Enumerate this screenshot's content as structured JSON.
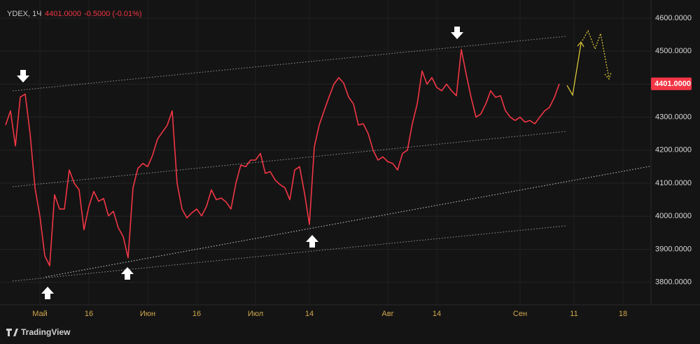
{
  "chart_data": {
    "type": "line",
    "symbol": "YDEX, 1Ч",
    "price": "4401.0000",
    "change": "-0.5000 (-0.01%)",
    "brand": "TradingView",
    "last_price": {
      "value": 4401,
      "label": "4401.0000"
    },
    "categories": [
      null,
      null,
      null,
      null,
      null,
      null,
      null,
      "Май",
      null,
      null,
      null,
      null,
      null,
      null,
      null,
      null,
      null,
      "16",
      null,
      null,
      null,
      null,
      null,
      null,
      null,
      null,
      null,
      null,
      null,
      "Июн",
      null,
      null,
      null,
      null,
      null,
      null,
      null,
      null,
      null,
      "16",
      null,
      null,
      null,
      null,
      null,
      null,
      null,
      null,
      null,
      null,
      null,
      "Июл",
      null,
      null,
      null,
      null,
      null,
      null,
      null,
      null,
      null,
      null,
      "14",
      null,
      null,
      null,
      null,
      null,
      null,
      null,
      null,
      null,
      null,
      null,
      null,
      null,
      null,
      null,
      "Авг",
      null,
      null,
      null,
      null,
      null,
      null,
      null,
      null,
      null,
      "14",
      null,
      null,
      null,
      null,
      null,
      null,
      null,
      null,
      null,
      null,
      null,
      null,
      null,
      null,
      null,
      null,
      "Сен",
      null,
      null,
      null,
      null,
      null,
      null,
      null,
      null,
      null,
      null,
      "11",
      null,
      null,
      null,
      null,
      null,
      null,
      null,
      null,
      null,
      "18"
    ],
    "series": [
      {
        "name": "YDEX",
        "color": "#f23645",
        "values": [
          4276,
          4319,
          4213,
          4361,
          4370,
          4250,
          4086,
          4000,
          3880,
          3850,
          4065,
          4022,
          4022,
          4140,
          4100,
          4080,
          3959,
          4030,
          4075,
          4045,
          4054,
          4001,
          4015,
          3965,
          3938,
          3874,
          4086,
          4145,
          4160,
          4150,
          4185,
          4234,
          4255,
          4276,
          4319,
          4100,
          4022,
          3995,
          4010,
          4022,
          4001,
          4030,
          4080,
          4050,
          4055,
          4043,
          4022,
          4100,
          4155,
          4150,
          4170,
          4170,
          4190,
          4130,
          4135,
          4110,
          4096,
          4086,
          4050,
          4140,
          4150,
          4070,
          3975,
          4210,
          4276,
          4319,
          4361,
          4400,
          4420,
          4403,
          4361,
          4340,
          4276,
          4280,
          4250,
          4200,
          4170,
          4180,
          4165,
          4160,
          4140,
          4190,
          4200,
          4280,
          4340,
          4440,
          4400,
          4420,
          4390,
          4380,
          4400,
          4380,
          4365,
          4505,
          4430,
          4360,
          4300,
          4310,
          4340,
          4380,
          4360,
          4365,
          4320,
          4300,
          4290,
          4300,
          4285,
          4290,
          4280,
          4300,
          4319,
          4330,
          4360,
          4401,
          null,
          null,
          null,
          null,
          null,
          null,
          null,
          null,
          null,
          null,
          null,
          null,
          null
        ]
      }
    ],
    "ylim": [
      3740,
      4655
    ],
    "yticks": [
      {
        "value": 3800,
        "label": "3800.0000"
      },
      {
        "value": 3900,
        "label": "3900.0000"
      },
      {
        "value": 4000,
        "label": "4000.0000"
      },
      {
        "value": 4100,
        "label": "4100.0000"
      },
      {
        "value": 4200,
        "label": "4200.0000"
      },
      {
        "value": 4300,
        "label": "4300.0000"
      },
      {
        "value": 4400,
        "label": "4400.0000"
      },
      {
        "value": 4500,
        "label": "4500.0000"
      },
      {
        "value": 4600,
        "label": "4600.0000"
      }
    ],
    "grid": true
  }
}
